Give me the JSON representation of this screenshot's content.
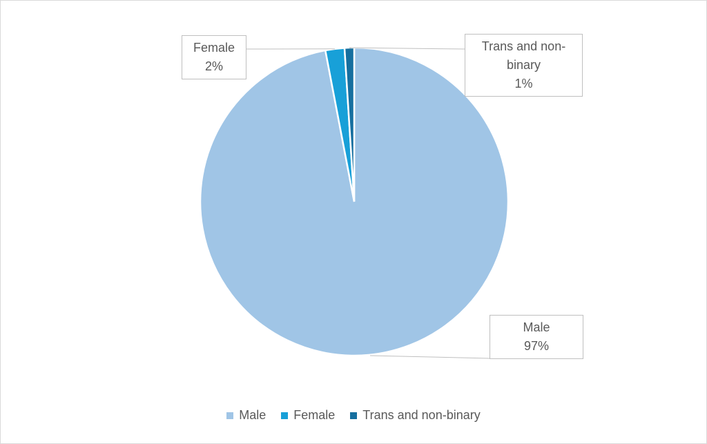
{
  "chart_data": {
    "type": "pie",
    "categories": [
      "Male",
      "Female",
      "Trans and non-binary"
    ],
    "values": [
      97,
      2,
      1
    ],
    "value_labels": [
      "97%",
      "2%",
      "1%"
    ],
    "colors": [
      "#a0c5e6",
      "#18a0d8",
      "#166f9f"
    ],
    "legend": "bottom"
  }
}
